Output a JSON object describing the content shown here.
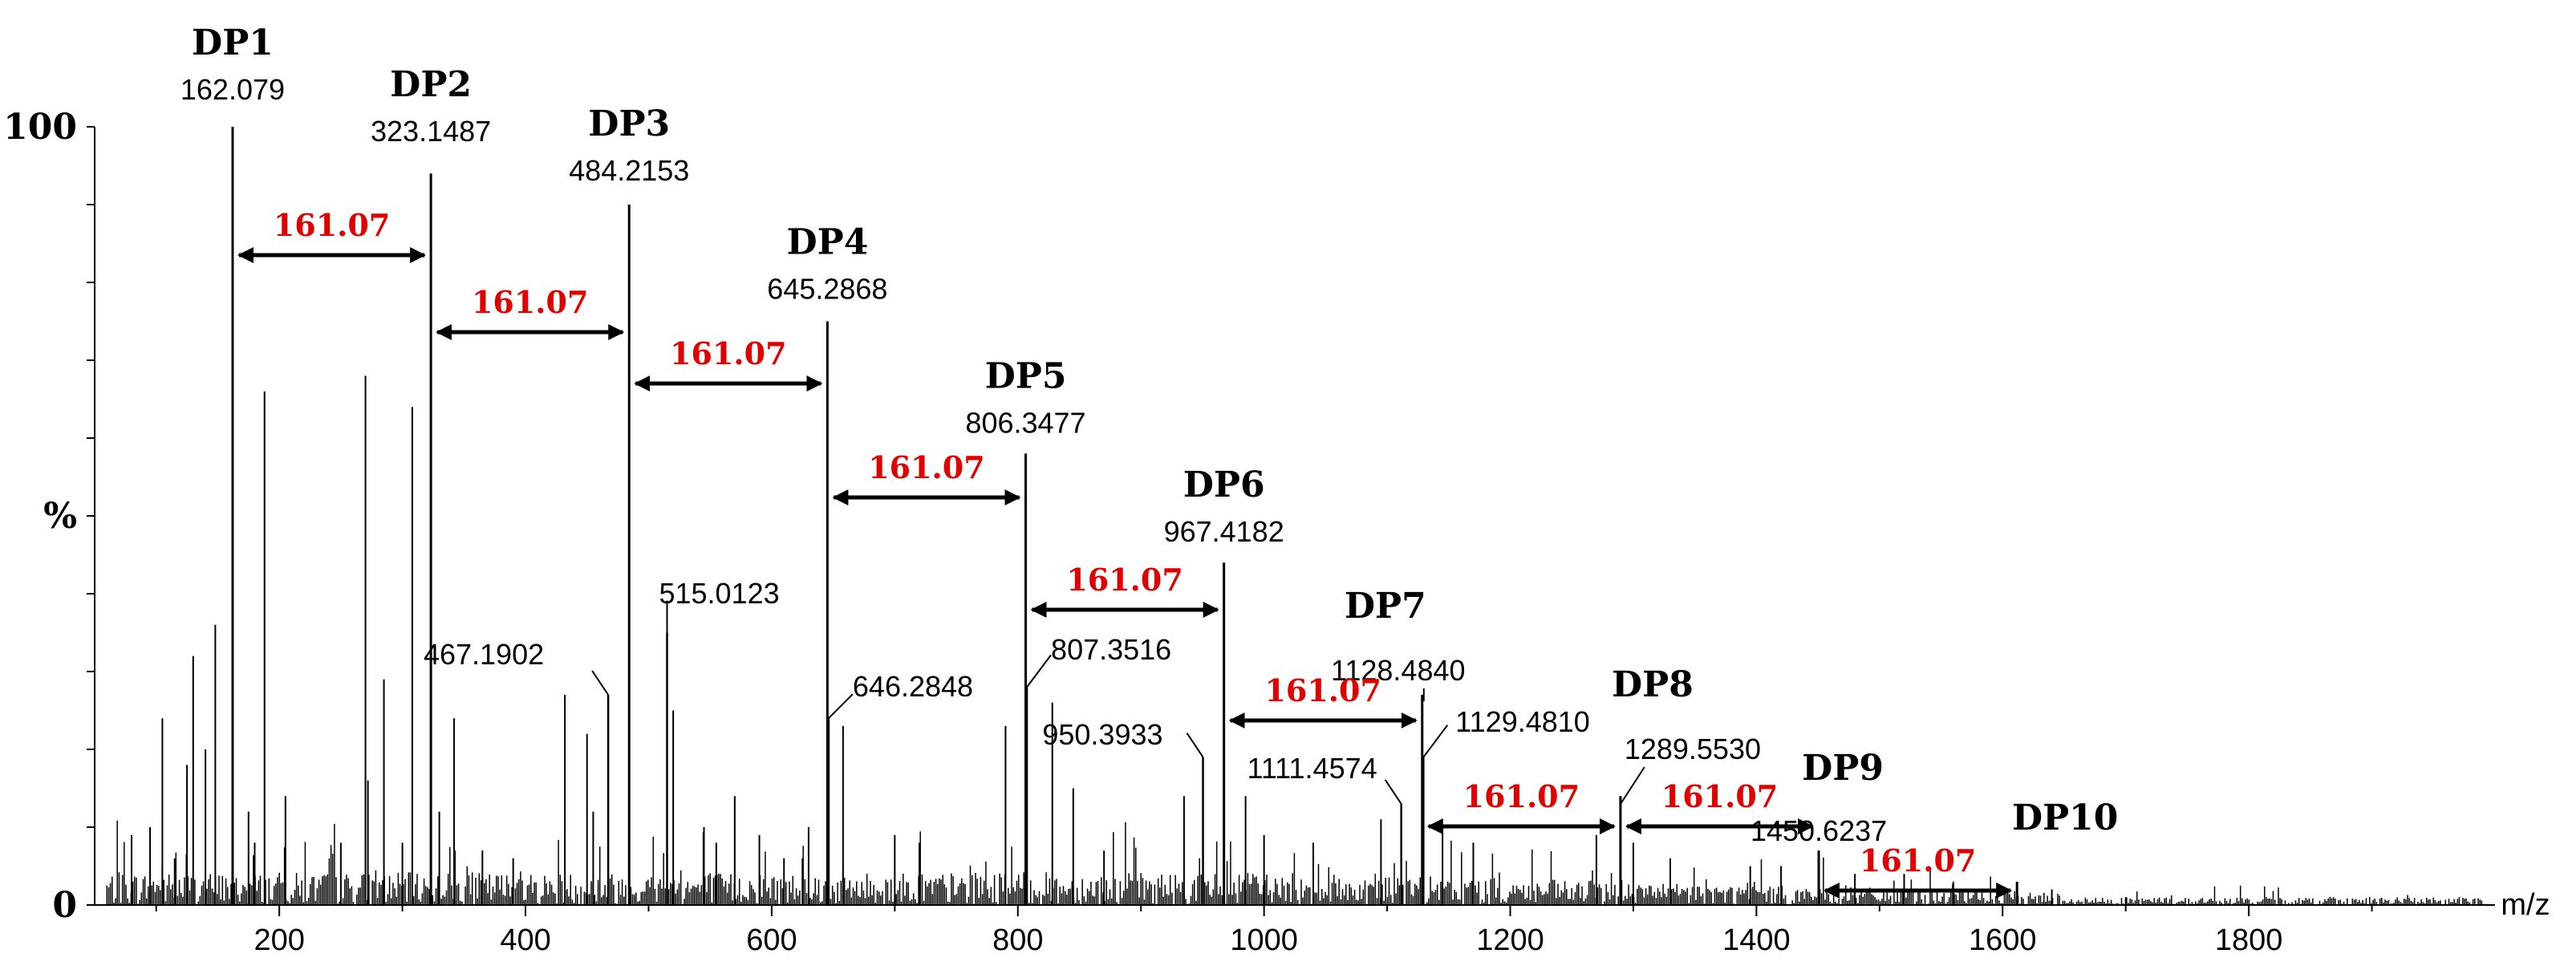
{
  "chart_data": {
    "type": "line",
    "title": "",
    "xlabel": "m/z",
    "ylabel": "%",
    "xlim": [
      50,
      2000
    ],
    "ylim": [
      0,
      100
    ],
    "x_ticks": [
      200,
      400,
      600,
      800,
      1000,
      1200,
      1400,
      1600,
      1800
    ],
    "y_ticks": [
      {
        "value": 0,
        "label": "0"
      },
      {
        "value": 50,
        "label": "%"
      },
      {
        "value": 100,
        "label": "100"
      }
    ],
    "dp_peaks": [
      {
        "name": "DP1",
        "mz": 162.079,
        "mz_label": "162.079",
        "intensity": 100
      },
      {
        "name": "DP2",
        "mz": 323.1487,
        "mz_label": "323.1487",
        "intensity": 94
      },
      {
        "name": "DP3",
        "mz": 484.2153,
        "mz_label": "484.2153",
        "intensity": 90
      },
      {
        "name": "DP4",
        "mz": 645.2868,
        "mz_label": "645.2868",
        "intensity": 75
      },
      {
        "name": "DP5",
        "mz": 806.3477,
        "mz_label": "806.3477",
        "intensity": 58
      },
      {
        "name": "DP6",
        "mz": 967.4182,
        "mz_label": "967.4182",
        "intensity": 44
      },
      {
        "name": "DP7",
        "mz": 1128.484,
        "mz_label": "1128.4840",
        "intensity": 27
      },
      {
        "name": "DP8",
        "mz": 1289.553,
        "mz_label": "1289.5530",
        "intensity": 14
      },
      {
        "name": "DP9",
        "mz": 1450.6237,
        "mz_label": "1450.6237",
        "intensity": 7
      },
      {
        "name": "DP10",
        "mz": 1611.69,
        "mz_label": "",
        "intensity": 3
      }
    ],
    "other_labeled_peaks": [
      {
        "mz": 467.1902,
        "label": "467.1902",
        "intensity": 27
      },
      {
        "mz": 515.0123,
        "label": "515.0123",
        "intensity": 35
      },
      {
        "mz": 646.2848,
        "label": "646.2848",
        "intensity": 24
      },
      {
        "mz": 807.3516,
        "label": "807.3516",
        "intensity": 28
      },
      {
        "mz": 950.3933,
        "label": "950.3933",
        "intensity": 19
      },
      {
        "mz": 1111.4574,
        "label": "1111.4574",
        "intensity": 13
      },
      {
        "mz": 1129.481,
        "label": "1129.4810",
        "intensity": 19
      }
    ],
    "minor_peaks": [
      [
        80,
        9
      ],
      [
        95,
        10
      ],
      [
        105,
        24
      ],
      [
        115,
        6
      ],
      [
        125,
        18
      ],
      [
        130,
        32
      ],
      [
        140,
        20
      ],
      [
        148,
        36
      ],
      [
        175,
        12
      ],
      [
        180,
        8
      ],
      [
        188,
        66
      ],
      [
        205,
        14
      ],
      [
        250,
        8
      ],
      [
        270,
        68
      ],
      [
        272,
        16
      ],
      [
        285,
        29
      ],
      [
        300,
        8
      ],
      [
        308,
        64
      ],
      [
        330,
        12
      ],
      [
        342,
        24
      ],
      [
        365,
        7
      ],
      [
        390,
        6
      ],
      [
        432,
        27
      ],
      [
        450,
        22
      ],
      [
        455,
        12
      ],
      [
        520,
        25
      ],
      [
        545,
        10
      ],
      [
        555,
        8
      ],
      [
        570,
        14
      ],
      [
        590,
        9
      ],
      [
        610,
        6
      ],
      [
        625,
        6
      ],
      [
        630,
        10
      ],
      [
        658,
        23
      ],
      [
        700,
        9
      ],
      [
        720,
        8
      ],
      [
        790,
        23
      ],
      [
        828,
        26
      ],
      [
        845,
        15
      ],
      [
        870,
        7
      ],
      [
        935,
        14
      ],
      [
        985,
        14
      ],
      [
        1000,
        9
      ],
      [
        1040,
        8
      ],
      [
        1095,
        11
      ],
      [
        1145,
        10
      ],
      [
        1170,
        8
      ],
      [
        1270,
        9
      ],
      [
        1300,
        8
      ],
      [
        1330,
        6
      ],
      [
        1395,
        5
      ],
      [
        1420,
        5
      ],
      [
        1480,
        4
      ],
      [
        1520,
        4
      ],
      [
        1560,
        3
      ],
      [
        1640,
        2
      ],
      [
        1700,
        1
      ]
    ],
    "mass_difference": {
      "label": "161.07",
      "intervals": [
        [
          162.079,
          323.1487
        ],
        [
          323.1487,
          484.2153
        ],
        [
          484.2153,
          645.2868
        ],
        [
          645.2868,
          806.3477
        ],
        [
          806.3477,
          967.4182
        ],
        [
          967.4182,
          1128.484
        ],
        [
          1128.484,
          1289.553
        ],
        [
          1289.553,
          1450.6237
        ],
        [
          1450.6237,
          1611.69
        ]
      ]
    },
    "colors": {
      "peak": "#000000",
      "difference_label": "#e00000",
      "arrow": "#000000"
    }
  }
}
